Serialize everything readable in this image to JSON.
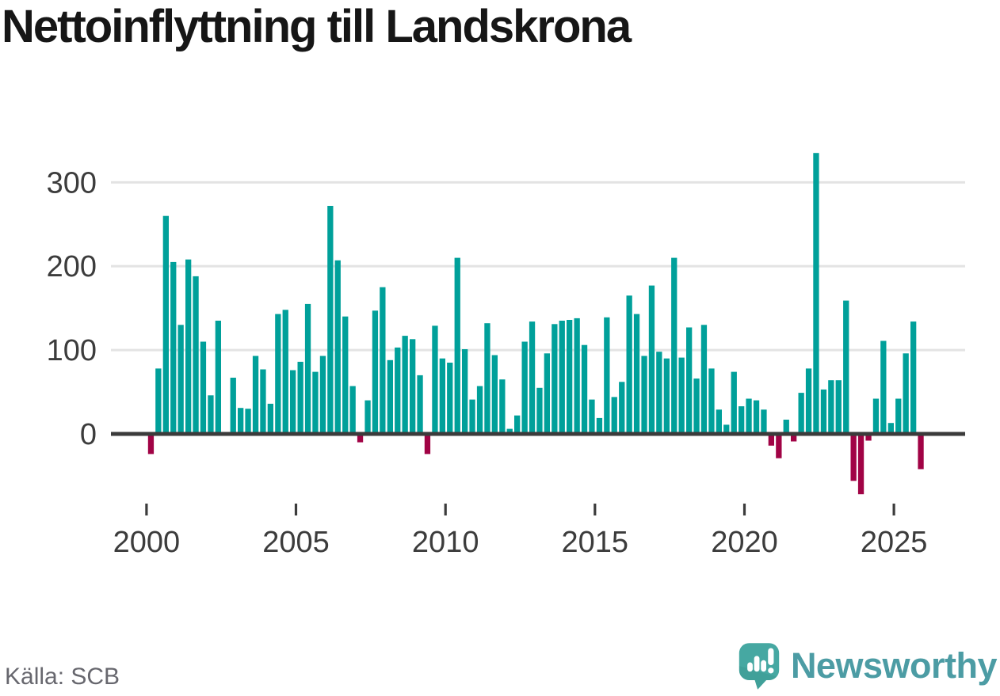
{
  "page": {
    "title": "Nettoinflyttning till Landskrona",
    "source": "Källa: SCB",
    "brand": "Newsworthy"
  },
  "colors": {
    "positive": "#00a09a",
    "negative": "#a10345",
    "baseline": "#3b3b3b",
    "gridline": "#e3e3e3",
    "tick_label": "#3c3c3c",
    "title_text": "#161616",
    "source_text": "#67676e",
    "brand_text": "#4c9ca4",
    "brand_icon": "#46a8a2",
    "brand_icon_shade": "#3a968f"
  },
  "chart_data": {
    "type": "bar",
    "title": "Nettoinflyttning till Landskrona",
    "source": "Källa: SCB",
    "frequency": "quarterly",
    "xlabel": "",
    "ylabel": "",
    "grid": "horizontal",
    "ylim": [
      -80,
      345
    ],
    "yticks": [
      0,
      100,
      200,
      300
    ],
    "xticks": [
      2000,
      2005,
      2010,
      2015,
      2020,
      2025
    ],
    "categories": [
      "2000 Q1",
      "2000 Q2",
      "2000 Q3",
      "2000 Q4",
      "2001 Q1",
      "2001 Q2",
      "2001 Q3",
      "2001 Q4",
      "2002 Q1",
      "2002 Q2",
      "2002 Q3",
      "2002 Q4",
      "2003 Q1",
      "2003 Q2",
      "2003 Q3",
      "2003 Q4",
      "2004 Q1",
      "2004 Q2",
      "2004 Q3",
      "2004 Q4",
      "2005 Q1",
      "2005 Q2",
      "2005 Q3",
      "2005 Q4",
      "2006 Q1",
      "2006 Q2",
      "2006 Q3",
      "2006 Q4",
      "2007 Q1",
      "2007 Q2",
      "2007 Q3",
      "2007 Q4",
      "2008 Q1",
      "2008 Q2",
      "2008 Q3",
      "2008 Q4",
      "2009 Q1",
      "2009 Q2",
      "2009 Q3",
      "2009 Q4",
      "2010 Q1",
      "2010 Q2",
      "2010 Q3",
      "2010 Q4",
      "2011 Q1",
      "2011 Q2",
      "2011 Q3",
      "2011 Q4",
      "2012 Q1",
      "2012 Q2",
      "2012 Q3",
      "2012 Q4",
      "2013 Q1",
      "2013 Q2",
      "2013 Q3",
      "2013 Q4",
      "2014 Q1",
      "2014 Q2",
      "2014 Q3",
      "2014 Q4",
      "2015 Q1",
      "2015 Q2",
      "2015 Q3",
      "2015 Q4",
      "2016 Q1",
      "2016 Q2",
      "2016 Q3",
      "2016 Q4",
      "2017 Q1",
      "2017 Q2",
      "2017 Q3",
      "2017 Q4",
      "2018 Q1",
      "2018 Q2",
      "2018 Q3",
      "2018 Q4",
      "2019 Q1",
      "2019 Q2",
      "2019 Q3",
      "2019 Q4",
      "2020 Q1",
      "2020 Q2",
      "2020 Q3",
      "2020 Q4",
      "2021 Q1",
      "2021 Q2",
      "2021 Q3",
      "2021 Q4",
      "2022 Q1",
      "2022 Q2",
      "2022 Q3",
      "2022 Q4",
      "2023 Q1",
      "2023 Q2",
      "2023 Q3",
      "2023 Q4",
      "2024 Q1",
      "2024 Q2",
      "2024 Q3",
      "2024 Q4",
      "2025 Q1",
      "2025 Q2",
      "2025 Q3",
      "2025 Q4"
    ],
    "values": [
      -24,
      78,
      260,
      205,
      130,
      208,
      188,
      110,
      46,
      135,
      2,
      67,
      31,
      30,
      93,
      77,
      36,
      143,
      148,
      76,
      86,
      155,
      74,
      93,
      272,
      207,
      140,
      57,
      -10,
      40,
      147,
      175,
      88,
      103,
      117,
      113,
      70,
      -24,
      129,
      90,
      85,
      210,
      101,
      41,
      57,
      132,
      94,
      65,
      6,
      22,
      110,
      134,
      55,
      96,
      131,
      135,
      136,
      138,
      106,
      41,
      19,
      139,
      44,
      62,
      165,
      143,
      93,
      177,
      98,
      90,
      210,
      91,
      127,
      66,
      130,
      78,
      29,
      11,
      74,
      33,
      42,
      40,
      29,
      -14,
      -29,
      17,
      -9,
      49,
      78,
      335,
      53,
      64,
      64,
      159,
      -56,
      -72,
      -8,
      42,
      111,
      13,
      42,
      96,
      134,
      -42
    ]
  }
}
